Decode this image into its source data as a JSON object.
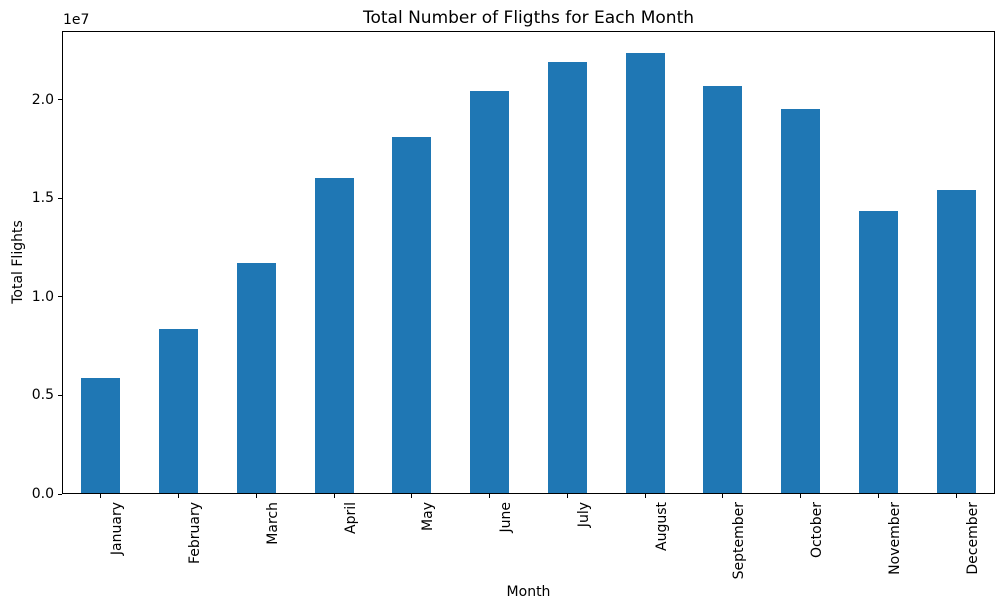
{
  "chart_data": {
    "type": "bar",
    "title": "Total Number of Fligths for Each Month",
    "xlabel": "Month",
    "ylabel": "Total Flights",
    "offset_text": "1e7",
    "categories": [
      "January",
      "February",
      "March",
      "April",
      "May",
      "June",
      "July",
      "August",
      "September",
      "October",
      "November",
      "December"
    ],
    "values": [
      5850000,
      8300000,
      11650000,
      16000000,
      18050000,
      20400000,
      21900000,
      22350000,
      20650000,
      19500000,
      14300000,
      15400000
    ],
    "ylim": [
      0,
      23500000
    ],
    "yticks": [
      0,
      5000000,
      10000000,
      15000000,
      20000000
    ],
    "ytick_labels": [
      "0.0",
      "0.5",
      "1.0",
      "1.5",
      "2.0"
    ],
    "bar_color": "#1f77b4",
    "grid": false,
    "legend_position": "none"
  }
}
